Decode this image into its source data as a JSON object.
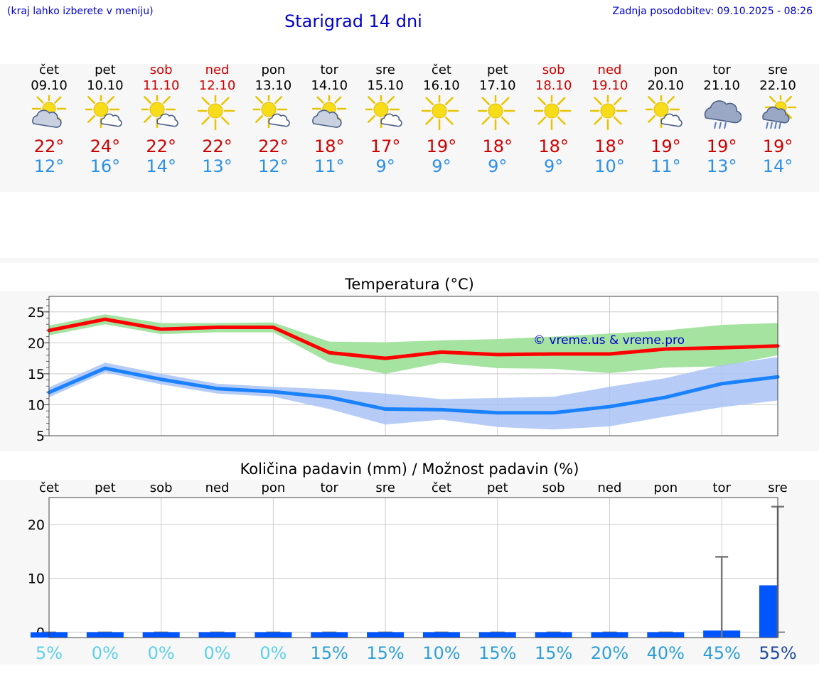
{
  "header": {
    "hint": "(kraj lahko izberete v meniju)",
    "title": "Starigrad 14 dni",
    "updated": "Zadnja posodobitev: 09.10.2025 - 08:26"
  },
  "colors": {
    "max_line": "#ff0000",
    "min_line": "#1a82ff",
    "max_band": "#a5e3a1",
    "min_band": "#a9c3f5",
    "precip_bar": "#0055ff",
    "weekday": "#000000",
    "weekend": "#cc0000",
    "tmax": "#cc0000",
    "tmin": "#2b8fe6"
  },
  "days": [
    {
      "name": "čet",
      "date": "09.10",
      "weekend": false,
      "icon": "partly-cloudy-icon",
      "tmax": "22°",
      "tmin": "12°"
    },
    {
      "name": "pet",
      "date": "10.10",
      "weekend": false,
      "icon": "sun-small-cloud-icon",
      "tmax": "24°",
      "tmin": "16°"
    },
    {
      "name": "sob",
      "date": "11.10",
      "weekend": true,
      "icon": "sun-small-cloud-icon",
      "tmax": "22°",
      "tmin": "14°"
    },
    {
      "name": "ned",
      "date": "12.10",
      "weekend": true,
      "icon": "sun-icon",
      "tmax": "22°",
      "tmin": "13°"
    },
    {
      "name": "pon",
      "date": "13.10",
      "weekend": false,
      "icon": "sun-small-cloud-icon",
      "tmax": "22°",
      "tmin": "12°"
    },
    {
      "name": "tor",
      "date": "14.10",
      "weekend": false,
      "icon": "partly-cloudy-icon",
      "tmax": "18°",
      "tmin": "11°"
    },
    {
      "name": "sre",
      "date": "15.10",
      "weekend": false,
      "icon": "sun-small-cloud-icon",
      "tmax": "17°",
      "tmin": "9°"
    },
    {
      "name": "čet",
      "date": "16.10",
      "weekend": false,
      "icon": "sun-icon",
      "tmax": "19°",
      "tmin": "9°"
    },
    {
      "name": "pet",
      "date": "17.10",
      "weekend": false,
      "icon": "sun-icon",
      "tmax": "18°",
      "tmin": "9°"
    },
    {
      "name": "sob",
      "date": "18.10",
      "weekend": true,
      "icon": "sun-icon",
      "tmax": "18°",
      "tmin": "9°"
    },
    {
      "name": "ned",
      "date": "19.10",
      "weekend": true,
      "icon": "sun-icon",
      "tmax": "18°",
      "tmin": "10°"
    },
    {
      "name": "pon",
      "date": "20.10",
      "weekend": false,
      "icon": "sun-small-cloud-icon",
      "tmax": "19°",
      "tmin": "11°"
    },
    {
      "name": "tor",
      "date": "21.10",
      "weekend": false,
      "icon": "cloud-rain-icon",
      "tmax": "19°",
      "tmin": "13°"
    },
    {
      "name": "sre",
      "date": "22.10",
      "weekend": false,
      "icon": "sun-rain-icon",
      "tmax": "19°",
      "tmin": "14°"
    }
  ],
  "chart_data": [
    {
      "type": "line",
      "title": "Temperatura (°C)",
      "watermark": "© vreme.us & vreme.pro",
      "ylim": [
        5,
        27.5
      ],
      "yticks": [
        5,
        10,
        15,
        20,
        25
      ],
      "grid": true,
      "x": [
        0,
        1,
        2,
        3,
        4,
        5,
        6,
        7,
        8,
        9,
        10,
        11,
        12,
        13
      ],
      "series": [
        {
          "name": "max",
          "values": [
            22,
            23.8,
            22.2,
            22.5,
            22.5,
            18.4,
            17.5,
            18.5,
            18.1,
            18.2,
            18.2,
            19.0,
            19.2,
            19.5
          ],
          "band_low": [
            21.2,
            23.0,
            21.4,
            21.7,
            21.7,
            16.8,
            15.0,
            16.8,
            15.9,
            15.8,
            15.1,
            16.0,
            16.2,
            18.0
          ],
          "band_high": [
            22.8,
            24.6,
            23.2,
            23.2,
            23.3,
            20.2,
            20.1,
            20.4,
            20.6,
            21.0,
            21.5,
            22.0,
            22.9,
            23.2
          ]
        },
        {
          "name": "min",
          "values": [
            12.0,
            15.9,
            14.1,
            12.6,
            12.1,
            11.2,
            9.3,
            9.2,
            8.7,
            8.7,
            9.7,
            11.2,
            13.4,
            14.5
          ],
          "band_low": [
            11.2,
            15.2,
            13.3,
            11.8,
            11.3,
            9.3,
            6.8,
            7.6,
            6.4,
            6.0,
            6.5,
            8.1,
            9.6,
            10.7
          ],
          "band_high": [
            12.8,
            16.8,
            15.0,
            13.4,
            12.9,
            12.5,
            11.8,
            10.9,
            11.1,
            11.3,
            12.9,
            14.3,
            16.4,
            17.7
          ]
        }
      ]
    },
    {
      "type": "bar",
      "title": "Količina padavin (mm) / Možnost padavin (%)",
      "ylim": [
        -1,
        25
      ],
      "yticks": [
        0,
        10,
        20
      ],
      "grid": true,
      "categories": [
        "čet",
        "pet",
        "sob",
        "ned",
        "pon",
        "tor",
        "sre",
        "čet",
        "pet",
        "sob",
        "ned",
        "pon",
        "tor",
        "sre"
      ],
      "values": [
        0,
        0,
        0,
        0,
        0,
        0,
        0,
        0,
        0,
        0,
        0,
        0,
        0.3,
        8.7
      ],
      "error_high": [
        null,
        null,
        null,
        null,
        null,
        null,
        null,
        null,
        null,
        null,
        null,
        null,
        14.0,
        23.3
      ],
      "probability": [
        "5%",
        "0%",
        "0%",
        "0%",
        "0%",
        "15%",
        "15%",
        "10%",
        "15%",
        "15%",
        "20%",
        "40%",
        "45%",
        "55%"
      ]
    }
  ]
}
